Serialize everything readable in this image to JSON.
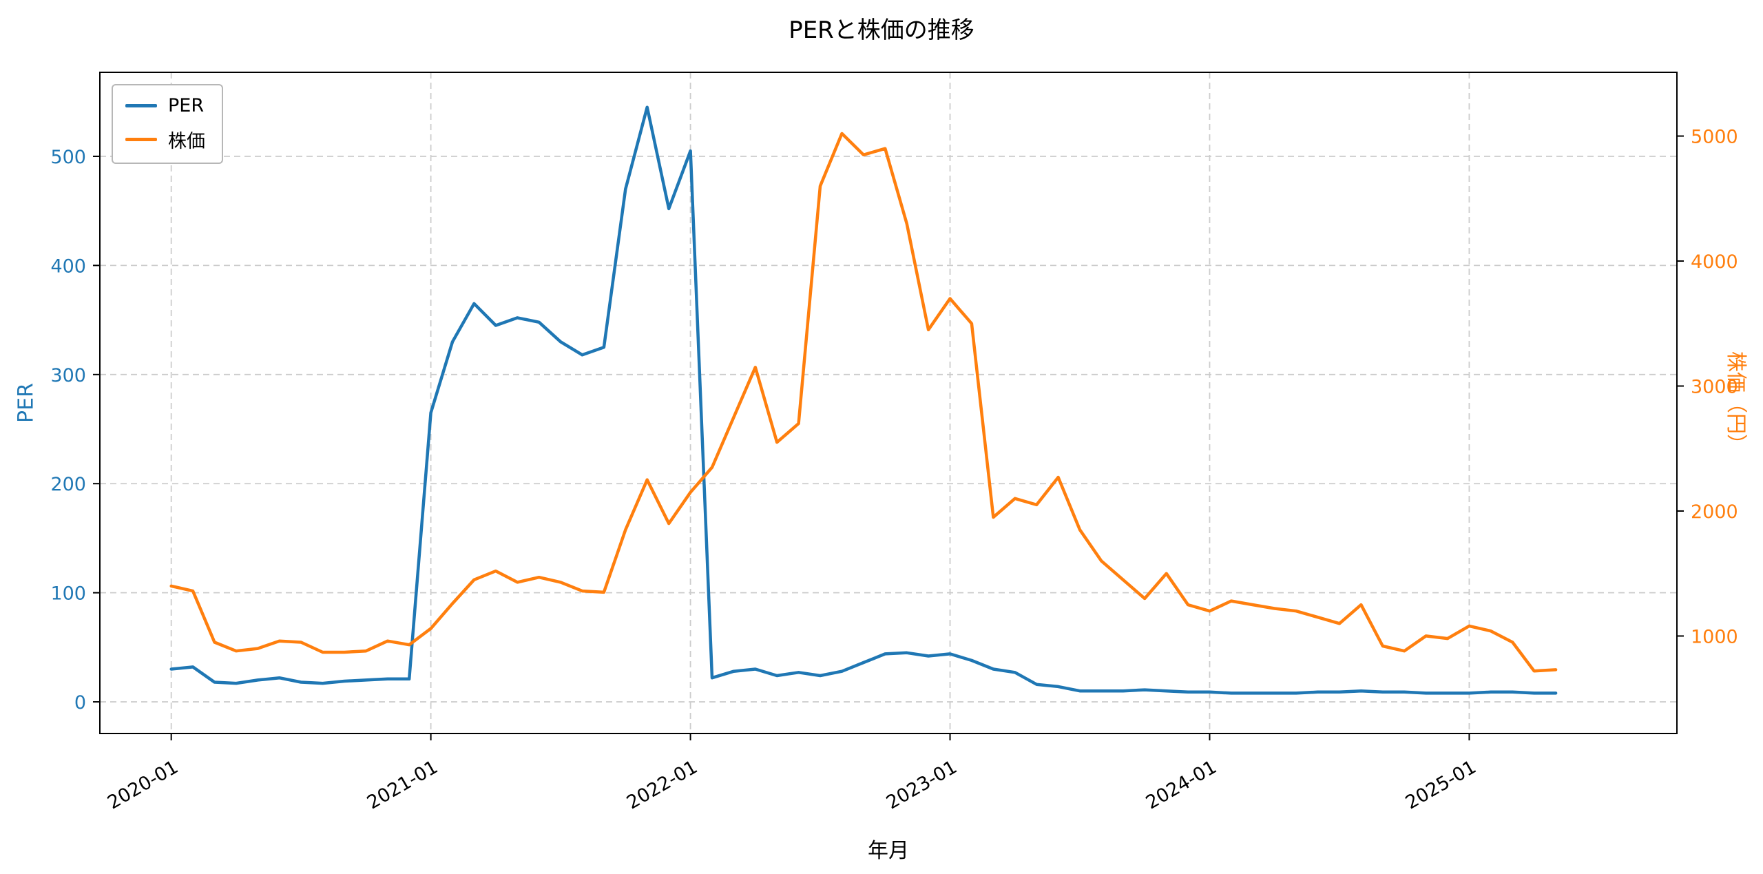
{
  "title": "PERと株価の推移",
  "chart_data": {
    "type": "line",
    "grid": true,
    "x": [
      "2020-01",
      "2020-02",
      "2020-03",
      "2020-04",
      "2020-05",
      "2020-06",
      "2020-07",
      "2020-08",
      "2020-09",
      "2020-10",
      "2020-11",
      "2020-12",
      "2021-01",
      "2021-02",
      "2021-03",
      "2021-04",
      "2021-05",
      "2021-06",
      "2021-07",
      "2021-08",
      "2021-09",
      "2021-10",
      "2021-11",
      "2021-12",
      "2022-01",
      "2022-02",
      "2022-03",
      "2022-04",
      "2022-05",
      "2022-06",
      "2022-07",
      "2022-08",
      "2022-09",
      "2022-10",
      "2022-11",
      "2022-12",
      "2023-01",
      "2023-02",
      "2023-03",
      "2023-04",
      "2023-05",
      "2023-06",
      "2023-07",
      "2023-08",
      "2023-09",
      "2023-10",
      "2023-11",
      "2023-12",
      "2024-01",
      "2024-02",
      "2024-03",
      "2024-04",
      "2024-05",
      "2024-06",
      "2024-07",
      "2024-08",
      "2024-09",
      "2024-10",
      "2024-11",
      "2024-12",
      "2025-01",
      "2025-02",
      "2025-03",
      "2025-04",
      "2025-05"
    ],
    "series": [
      {
        "name": "PER",
        "axis": "left",
        "color": "#1f77b4",
        "values": [
          30,
          32,
          18,
          17,
          20,
          22,
          18,
          17,
          19,
          20,
          21,
          21,
          265,
          330,
          365,
          345,
          352,
          348,
          330,
          318,
          325,
          470,
          545,
          452,
          505,
          22,
          28,
          30,
          24,
          27,
          24,
          28,
          36,
          44,
          45,
          42,
          44,
          38,
          30,
          27,
          16,
          14,
          10,
          10,
          10,
          11,
          10,
          9,
          9,
          8,
          8,
          8,
          8,
          9,
          9,
          10,
          9,
          9,
          8,
          8,
          8,
          9,
          9,
          8,
          8
        ]
      },
      {
        "name": "株価",
        "axis": "right",
        "color": "#ff7f0e",
        "values": [
          1400,
          1360,
          950,
          880,
          900,
          960,
          950,
          870,
          870,
          880,
          960,
          930,
          1060,
          1260,
          1450,
          1520,
          1430,
          1470,
          1430,
          1360,
          1350,
          1850,
          2250,
          1900,
          2150,
          2350,
          2750,
          3150,
          2550,
          2700,
          4600,
          5020,
          4850,
          4900,
          4300,
          3450,
          3700,
          3500,
          1950,
          2100,
          2050,
          2270,
          1850,
          1600,
          1450,
          1300,
          1500,
          1250,
          1200,
          1280,
          1250,
          1220,
          1200,
          1150,
          1100,
          1250,
          920,
          880,
          1000,
          980,
          1080,
          1040,
          950,
          720,
          730
        ]
      }
    ],
    "xlabel": "年月",
    "x_ticks": [
      "2020-01",
      "2021-01",
      "2022-01",
      "2023-01",
      "2024-01",
      "2025-01"
    ],
    "left_axis": {
      "label": "PER",
      "color": "#1f77b4",
      "ticks": [
        0,
        100,
        200,
        300,
        400,
        500
      ],
      "lim": [
        -29,
        577
      ]
    },
    "right_axis": {
      "label": "株価（円）",
      "color": "#ff7f0e",
      "ticks": [
        1000,
        2000,
        3000,
        4000,
        5000
      ],
      "lim": [
        220,
        5510
      ]
    },
    "legend": {
      "position": "upper-left",
      "entries": [
        "PER",
        "株価"
      ]
    }
  }
}
